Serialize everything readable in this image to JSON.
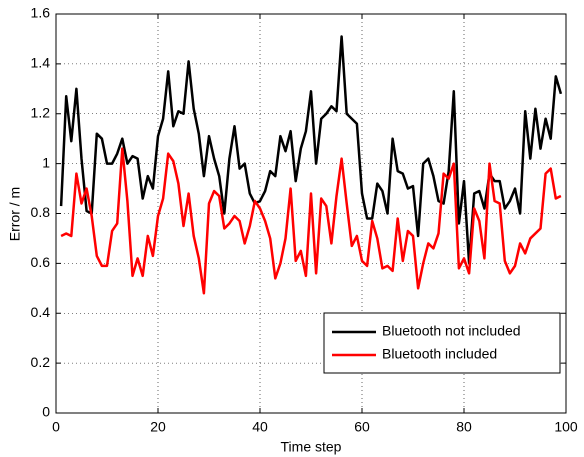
{
  "chart_data": {
    "type": "line",
    "xlabel": "Time step",
    "ylabel": "Error / m",
    "x": [
      1,
      2,
      3,
      4,
      5,
      6,
      7,
      8,
      9,
      10,
      11,
      12,
      13,
      14,
      15,
      16,
      17,
      18,
      19,
      20,
      21,
      22,
      23,
      24,
      25,
      26,
      27,
      28,
      29,
      30,
      31,
      32,
      33,
      34,
      35,
      36,
      37,
      38,
      39,
      40,
      41,
      42,
      43,
      44,
      45,
      46,
      47,
      48,
      49,
      50,
      51,
      52,
      53,
      54,
      55,
      56,
      57,
      58,
      59,
      60,
      61,
      62,
      63,
      64,
      65,
      66,
      67,
      68,
      69,
      70,
      71,
      72,
      73,
      74,
      75,
      76,
      77,
      78,
      79,
      80,
      81,
      82,
      83,
      84,
      85,
      86,
      87,
      88,
      89,
      90,
      91,
      92,
      93,
      94,
      95,
      96,
      97,
      98,
      99
    ],
    "series": [
      {
        "name": "Bluetooth not included",
        "color": "#000000",
        "values": [
          0.83,
          1.27,
          1.09,
          1.3,
          1.02,
          0.81,
          0.8,
          1.12,
          1.1,
          1.0,
          1.0,
          1.04,
          1.1,
          1.0,
          1.03,
          1.02,
          0.86,
          0.95,
          0.9,
          1.11,
          1.18,
          1.37,
          1.15,
          1.21,
          1.2,
          1.41,
          1.22,
          1.12,
          0.95,
          1.11,
          1.02,
          0.95,
          0.8,
          1.02,
          1.15,
          0.98,
          1.0,
          0.88,
          0.84,
          0.85,
          0.89,
          0.97,
          0.95,
          1.11,
          1.05,
          1.13,
          0.93,
          1.06,
          1.13,
          1.29,
          1.0,
          1.18,
          1.2,
          1.23,
          1.21,
          1.51,
          1.2,
          1.18,
          1.16,
          0.88,
          0.78,
          0.78,
          0.92,
          0.89,
          0.8,
          1.1,
          0.97,
          0.96,
          0.9,
          0.91,
          0.71,
          1.0,
          1.02,
          0.95,
          0.85,
          0.84,
          0.97,
          1.29,
          0.76,
          0.93,
          0.6,
          0.88,
          0.89,
          0.82,
          0.96,
          0.93,
          0.93,
          0.82,
          0.85,
          0.9,
          0.8,
          1.21,
          1.02,
          1.22,
          1.06,
          1.18,
          1.1,
          1.35,
          1.28
        ]
      },
      {
        "name": "Bluetooth included",
        "color": "#ff0000",
        "values": [
          0.71,
          0.72,
          0.71,
          0.96,
          0.84,
          0.9,
          0.79,
          0.63,
          0.59,
          0.59,
          0.73,
          0.76,
          1.06,
          0.85,
          0.55,
          0.62,
          0.55,
          0.71,
          0.63,
          0.79,
          0.86,
          1.04,
          1.01,
          0.92,
          0.75,
          0.88,
          0.71,
          0.62,
          0.48,
          0.84,
          0.89,
          0.87,
          0.74,
          0.76,
          0.79,
          0.77,
          0.68,
          0.75,
          0.85,
          0.82,
          0.77,
          0.7,
          0.54,
          0.6,
          0.7,
          0.9,
          0.61,
          0.65,
          0.55,
          0.88,
          0.56,
          0.86,
          0.83,
          0.68,
          0.87,
          1.02,
          0.84,
          0.67,
          0.71,
          0.61,
          0.59,
          0.77,
          0.7,
          0.58,
          0.59,
          0.57,
          0.78,
          0.61,
          0.73,
          0.71,
          0.5,
          0.6,
          0.68,
          0.66,
          0.72,
          0.96,
          0.94,
          1.0,
          0.58,
          0.62,
          0.56,
          0.82,
          0.77,
          0.62,
          1.0,
          0.85,
          0.84,
          0.61,
          0.56,
          0.59,
          0.68,
          0.64,
          0.7,
          0.72,
          0.74,
          0.96,
          0.98,
          0.86,
          0.87
        ]
      }
    ],
    "xlim": [
      0,
      100
    ],
    "xticks": [
      0,
      20,
      40,
      60,
      80,
      100
    ],
    "ylim": [
      0,
      1.6
    ],
    "yticks": [
      0,
      0.2,
      0.4,
      0.6,
      0.8,
      1,
      1.2,
      1.4,
      1.6
    ],
    "grid": true,
    "legend": "lower right"
  }
}
